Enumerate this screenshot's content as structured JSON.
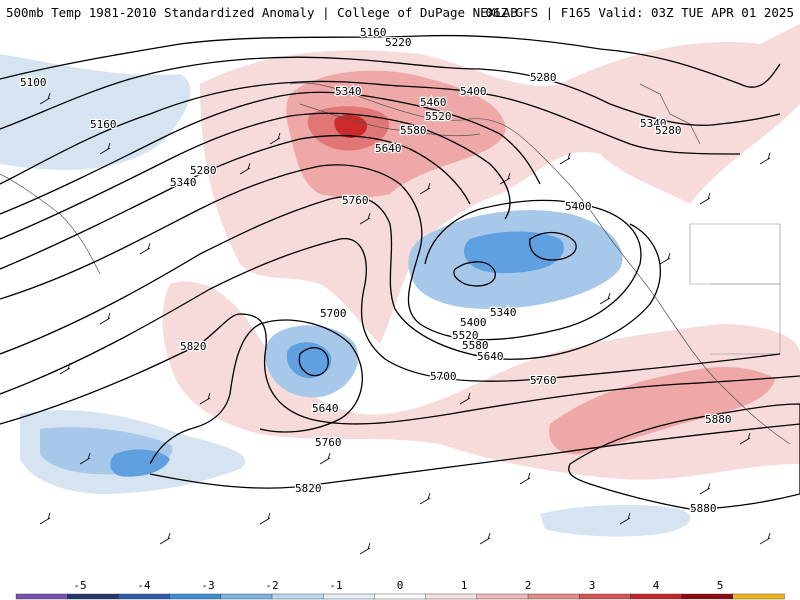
{
  "header": {
    "left": "500mb Temp 1981-2010 Standardized Anomaly | College of DuPage NEXLAB",
    "right": "06Z GFS | F165 Valid: 03Z TUE APR 01 2025"
  },
  "contour_labels": [
    {
      "text": "5100"
    },
    {
      "text": "5160"
    },
    {
      "text": "5160"
    },
    {
      "text": "5220"
    },
    {
      "text": "5280"
    },
    {
      "text": "5340"
    },
    {
      "text": "5340"
    },
    {
      "text": "5280"
    },
    {
      "text": "5340"
    },
    {
      "text": "5400"
    },
    {
      "text": "5460"
    },
    {
      "text": "5520"
    },
    {
      "text": "5580"
    },
    {
      "text": "5640"
    },
    {
      "text": "5760"
    },
    {
      "text": "5280"
    },
    {
      "text": "5400"
    },
    {
      "text": "5340"
    },
    {
      "text": "5400"
    },
    {
      "text": "5520"
    },
    {
      "text": "5580"
    },
    {
      "text": "5640"
    },
    {
      "text": "5700"
    },
    {
      "text": "5700"
    },
    {
      "text": "5760"
    },
    {
      "text": "5820"
    },
    {
      "text": "5640"
    },
    {
      "text": "5760"
    },
    {
      "text": "5820"
    },
    {
      "text": "5880"
    },
    {
      "text": "5880"
    }
  ],
  "colorbar": {
    "ticks": [
      "-5",
      "-4",
      "-3",
      "-2",
      "-1",
      "0",
      "1",
      "2",
      "3",
      "4",
      "5"
    ],
    "colors": [
      "#7b4fb0",
      "#26366e",
      "#2e5ba8",
      "#3e8fd6",
      "#7ab4e2",
      "#bcd6ee",
      "#e4eef8",
      "#ffffff",
      "#f7e0e0",
      "#f0b8b8",
      "#e48a8a",
      "#d55656",
      "#c8242e",
      "#8c0a10",
      "#f2b41c"
    ]
  },
  "map": {
    "anomaly_colors": {
      "warm_light": "#f7dada",
      "warm_mid": "#eea8a8",
      "warm_strong": "#e07676",
      "warm_max": "#cc2a2a",
      "cool_light": "#d6e4f2",
      "cool_mid": "#a8c8ea",
      "cool_strong": "#5ea0e0",
      "cool_max": "#2a78d0"
    },
    "features": [
      "height-contours",
      "wind-barbs",
      "coastlines",
      "standardized-anomaly-shading"
    ]
  }
}
